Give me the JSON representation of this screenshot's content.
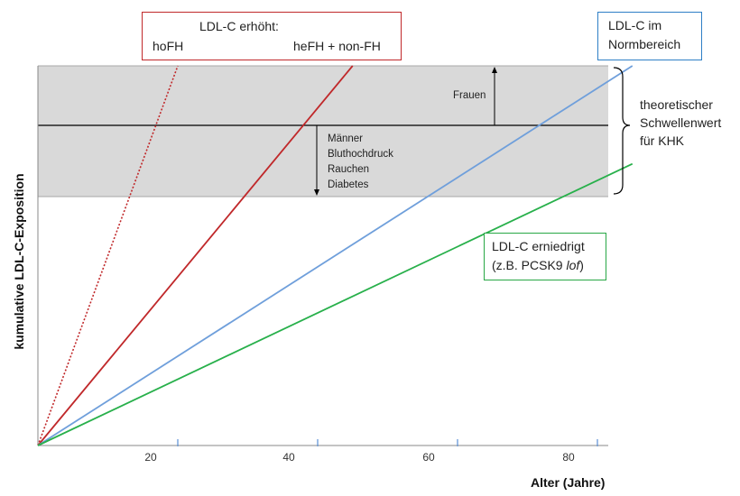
{
  "chart_data": {
    "type": "line",
    "xlabel": "Alter (Jahre)",
    "ylabel": "kumulative LDL-C-Exposition",
    "xlim": [
      0,
      87
    ],
    "x_ticks": [
      "20",
      "40",
      "60",
      "80"
    ],
    "threshold_band": {
      "lower": 100,
      "line": 128,
      "upper": 155
    },
    "ylim": [
      0,
      155
    ],
    "series": [
      {
        "name": "hoFH",
        "color": "#c0282a",
        "style": "dotted",
        "x": [
          0,
          20
        ],
        "y": [
          0,
          155
        ]
      },
      {
        "name": "heFH + non-FH",
        "color": "#c0282a",
        "style": "solid",
        "x": [
          0,
          45
        ],
        "y": [
          0,
          155
        ]
      },
      {
        "name": "LDL-C im Normbereich",
        "color": "#6f9fdb",
        "style": "solid",
        "x": [
          0,
          85
        ],
        "y": [
          0,
          155
        ]
      },
      {
        "name": "LDL-C erniedrigt",
        "color": "#28b04b",
        "style": "solid",
        "x": [
          0,
          85
        ],
        "y": [
          0,
          115
        ]
      }
    ],
    "annotations": {
      "elevated_title": "LDL-C erhöht:",
      "hofh": "hoFH",
      "hefh": "heFH + non-FH",
      "normal_line1": "LDL-C im",
      "normal_line2": "Normbereich",
      "low_line1": "LDL-C erniedrigt",
      "low_line2_prefix": "(z.B. PCSK9 ",
      "low_line2_italic": "lof",
      "low_line2_suffix": ")",
      "women": "Frauen",
      "men_factors": [
        "Männer",
        "Bluthochdruck",
        "Rauchen",
        "Diabetes"
      ],
      "threshold": [
        "theoretischer",
        "Schwellenwert",
        "für KHK"
      ]
    }
  }
}
